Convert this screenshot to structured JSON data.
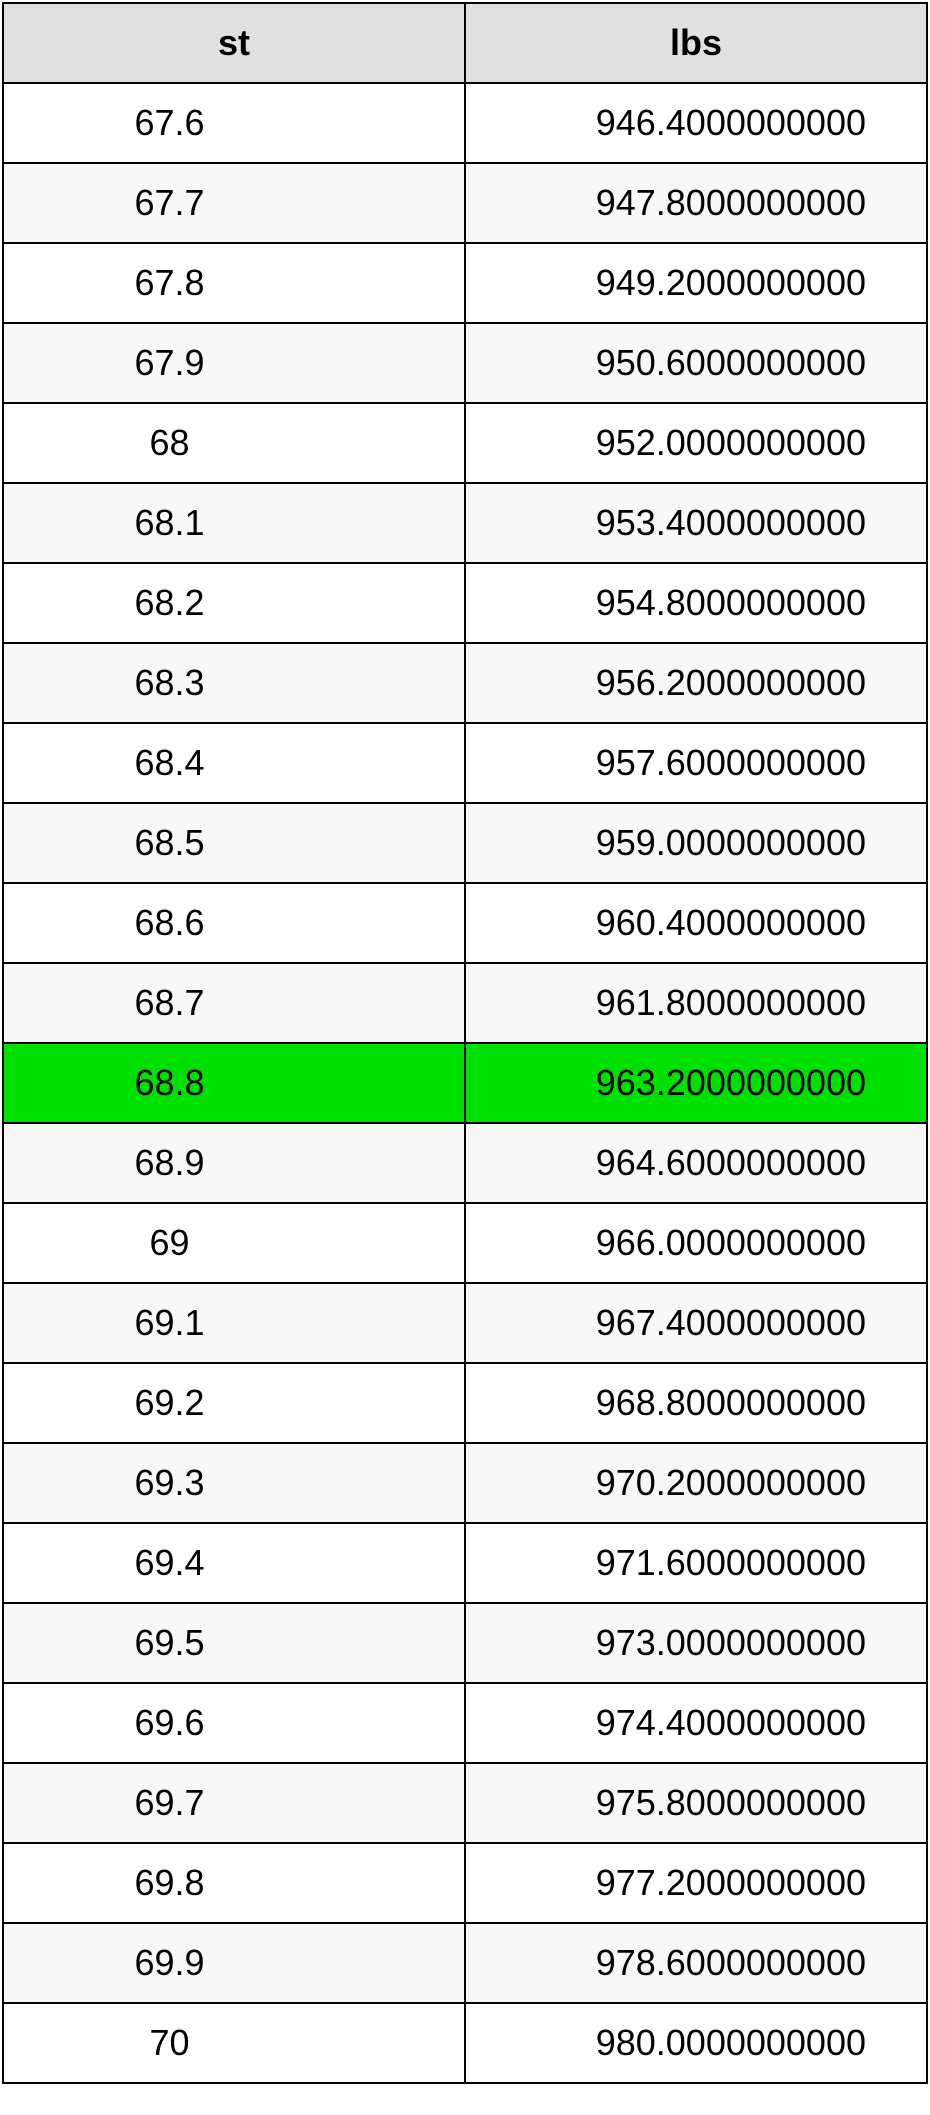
{
  "table": {
    "columns": [
      "st",
      "lbs"
    ],
    "header_bg": "#e0e0e0",
    "row_bg_odd": "#ffffff",
    "row_bg_even": "#f7f7f7",
    "highlight_bg": "#00e000",
    "border_color": "#000000",
    "font_size": 36,
    "highlight_index": 12,
    "rows": [
      {
        "st": "67.6",
        "lbs": "946.4000000000"
      },
      {
        "st": "67.7",
        "lbs": "947.8000000000"
      },
      {
        "st": "67.8",
        "lbs": "949.2000000000"
      },
      {
        "st": "67.9",
        "lbs": "950.6000000000"
      },
      {
        "st": "68",
        "lbs": "952.0000000000"
      },
      {
        "st": "68.1",
        "lbs": "953.4000000000"
      },
      {
        "st": "68.2",
        "lbs": "954.8000000000"
      },
      {
        "st": "68.3",
        "lbs": "956.2000000000"
      },
      {
        "st": "68.4",
        "lbs": "957.6000000000"
      },
      {
        "st": "68.5",
        "lbs": "959.0000000000"
      },
      {
        "st": "68.6",
        "lbs": "960.4000000000"
      },
      {
        "st": "68.7",
        "lbs": "961.8000000000"
      },
      {
        "st": "68.8",
        "lbs": "963.2000000000"
      },
      {
        "st": "68.9",
        "lbs": "964.6000000000"
      },
      {
        "st": "69",
        "lbs": "966.0000000000"
      },
      {
        "st": "69.1",
        "lbs": "967.4000000000"
      },
      {
        "st": "69.2",
        "lbs": "968.8000000000"
      },
      {
        "st": "69.3",
        "lbs": "970.2000000000"
      },
      {
        "st": "69.4",
        "lbs": "971.6000000000"
      },
      {
        "st": "69.5",
        "lbs": "973.0000000000"
      },
      {
        "st": "69.6",
        "lbs": "974.4000000000"
      },
      {
        "st": "69.7",
        "lbs": "975.8000000000"
      },
      {
        "st": "69.8",
        "lbs": "977.2000000000"
      },
      {
        "st": "69.9",
        "lbs": "978.6000000000"
      },
      {
        "st": "70",
        "lbs": "980.0000000000"
      }
    ]
  }
}
